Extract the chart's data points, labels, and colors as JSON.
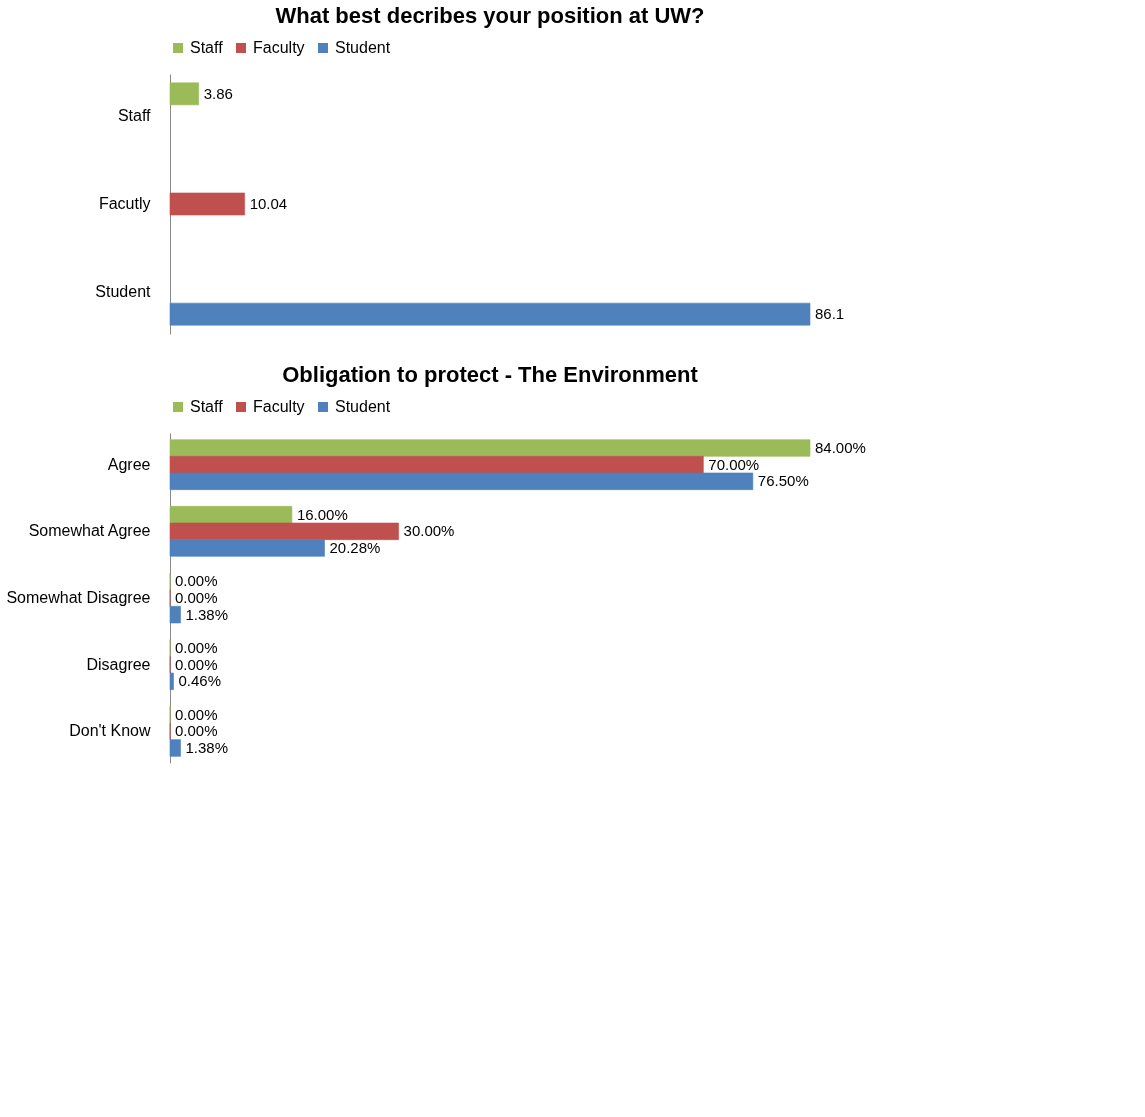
{
  "chart_data": [
    {
      "type": "bar",
      "orientation": "horizontal",
      "title": "What best decribes your position at UW?",
      "categories": [
        "Staff",
        "Facutly",
        "Student"
      ],
      "series": [
        {
          "name": "Staff",
          "color": "#9bbb59",
          "values": [
            3.86,
            null,
            null
          ]
        },
        {
          "name": "Faculty",
          "color": "#c0504d",
          "values": [
            null,
            10.04,
            null
          ]
        },
        {
          "name": "Student",
          "color": "#4f81bd",
          "values": [
            null,
            null,
            86.1
          ]
        }
      ],
      "data_labels": true,
      "legend": "top",
      "grid": false,
      "tick_labels": "y"
    },
    {
      "type": "bar",
      "orientation": "horizontal",
      "title": "Obligation to protect - The Environment",
      "categories": [
        "Agree",
        "Somewhat Agree",
        "Somewhat Disagree",
        "Disagree",
        "Don't Know"
      ],
      "series": [
        {
          "name": "Staff",
          "color": "#9bbb59",
          "values": [
            84,
            16,
            0,
            0,
            0
          ],
          "value_labels": [
            "84.00%",
            "16.00%",
            "0.00%",
            "0.00%",
            "0.00%"
          ]
        },
        {
          "name": "Faculty",
          "color": "#c0504d",
          "values": [
            70,
            30,
            0,
            0,
            0
          ],
          "value_labels": [
            "70.00%",
            "30.00%",
            "0.00%",
            "0.00%",
            "0.00%"
          ]
        },
        {
          "name": "Student",
          "color": "#4f81bd",
          "values": [
            76.5,
            20.28,
            1.38,
            0.46,
            1.38
          ],
          "value_labels": [
            "76.50%",
            "20.28%",
            "1.38%",
            "0.46%",
            "1.38%"
          ]
        }
      ],
      "legend": "top",
      "grid": false,
      "tick_labels": "y"
    }
  ]
}
